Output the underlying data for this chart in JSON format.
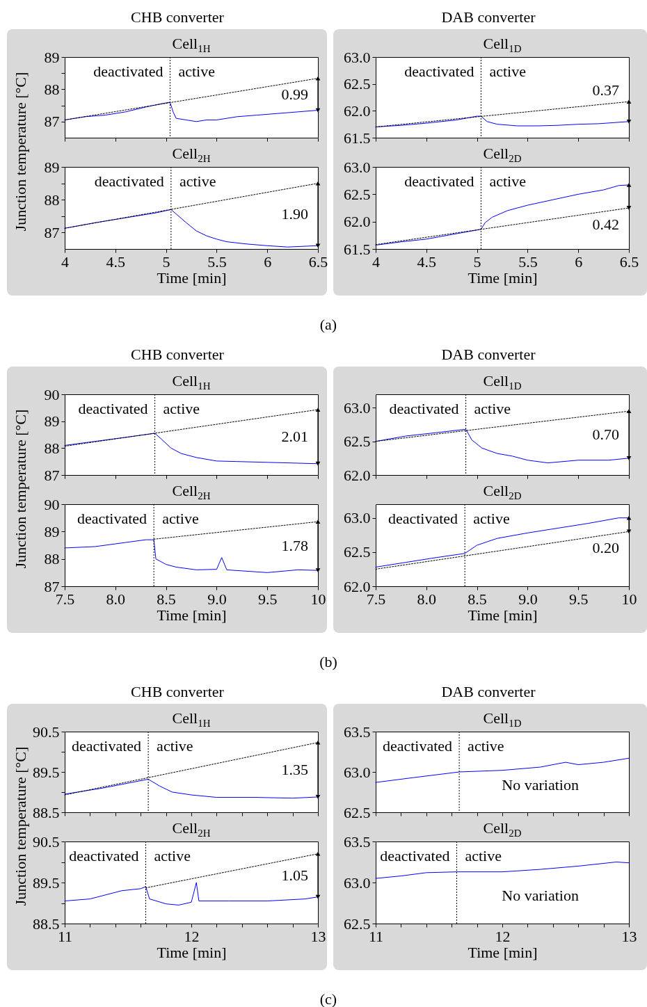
{
  "chart_data": [
    {
      "type": "line",
      "title": "CHB converter",
      "subtitle": "Cell$_{1H}$",
      "ylabel": "Junction temperature [°C]",
      "xlim": [
        4,
        6.5
      ],
      "xticks": [
        4,
        4.5,
        5,
        5.5,
        6,
        6.5
      ],
      "ylim": [
        86.5,
        89
      ],
      "yticks": [
        87,
        {
          "value": 87.5,
          "label": null
        },
        88,
        {
          "value": 88.5,
          "label": null
        },
        89
      ],
      "tick_labels": "y",
      "series": [
        {
          "color": "#0000ff",
          "x": [
            4,
            4.2,
            4.4,
            4.6,
            4.8,
            4.95,
            5.04,
            5.07,
            5.1,
            5.2,
            5.3,
            5.4,
            5.5,
            5.7,
            5.9,
            6.1,
            6.3,
            6.5
          ],
          "values": [
            87.05,
            87.15,
            87.2,
            87.3,
            87.45,
            87.55,
            87.6,
            87.3,
            87.1,
            87.05,
            87.0,
            87.05,
            87.05,
            87.15,
            87.2,
            87.25,
            87.3,
            87.35
          ]
        },
        {
          "type": "line",
          "color": "#000000",
          "line_style": "dotted",
          "x": [
            4,
            6.5
          ],
          "values": [
            87.05,
            88.34
          ]
        }
      ],
      "ref_lines": [
        {
          "axis": "x",
          "value": 5.04,
          "color": "#000000",
          "line_style": "dotted"
        }
      ],
      "annotations": [
        "deactivated",
        "active",
        "0.99"
      ]
    },
    {
      "type": "line",
      "title": "Cell$_{2H}$",
      "xlabel": "Time [min]",
      "xlim": [
        4,
        6.5
      ],
      "xticks": [
        4,
        4.5,
        5,
        5.5,
        6,
        6.5
      ],
      "ylim": [
        86.5,
        89
      ],
      "yticks": [
        87,
        {
          "value": 87.5,
          "label": null
        },
        88,
        {
          "value": 88.5,
          "label": null
        },
        89
      ],
      "series": [
        {
          "color": "#0000ff",
          "x": [
            4,
            4.3,
            4.6,
            4.9,
            5.05,
            5.2,
            5.3,
            5.4,
            5.5,
            5.6,
            5.8,
            6,
            6.2,
            6.5
          ],
          "values": [
            87.13,
            87.3,
            87.45,
            87.6,
            87.7,
            87.3,
            87.05,
            86.9,
            86.8,
            86.72,
            86.65,
            86.6,
            86.56,
            86.6
          ]
        },
        {
          "type": "line",
          "color": "#000000",
          "line_style": "dotted",
          "x": [
            4,
            6.5
          ],
          "values": [
            87.13,
            88.5
          ]
        }
      ],
      "ref_lines": [
        {
          "axis": "x",
          "value": 5.05,
          "color": "#000000",
          "line_style": "dotted"
        }
      ],
      "annotations": [
        "deactivated",
        "active",
        "1.90",
        "(a)"
      ]
    },
    {
      "type": "line",
      "title": "DAB converter",
      "subtitle": "Cell$_{1D}$",
      "xlim": [
        4,
        6.5
      ],
      "xticks": [
        4,
        4.5,
        5,
        5.5,
        6,
        6.5
      ],
      "ylim": [
        61.5,
        63
      ],
      "yticks": [
        61.5,
        {
          "value": 62,
          "label": "62.0"
        },
        62.5,
        {
          "value": 63,
          "label": "63.0"
        }
      ],
      "tick_labels": "y",
      "series": [
        {
          "color": "#0000ff",
          "x": [
            4,
            4.25,
            4.5,
            4.8,
            5.0,
            5.04,
            5.1,
            5.2,
            5.4,
            5.6,
            5.8,
            6.0,
            6.2,
            6.5
          ],
          "values": [
            61.7,
            61.73,
            61.77,
            61.83,
            61.9,
            61.9,
            61.8,
            61.75,
            61.72,
            61.72,
            61.73,
            61.75,
            61.76,
            61.8
          ]
        },
        {
          "type": "line",
          "color": "#000000",
          "line_style": "dotted",
          "x": [
            4,
            6.5
          ],
          "values": [
            61.7,
            62.17
          ]
        }
      ],
      "ref_lines": [
        {
          "axis": "x",
          "value": 5.04,
          "color": "#000000",
          "line_style": "dotted"
        }
      ],
      "annotations": [
        "deactivated",
        "active",
        "0.37"
      ]
    },
    {
      "type": "line",
      "title": "Cell$_{2D}$",
      "xlabel": "Time [min]",
      "xlim": [
        4,
        6.5
      ],
      "xticks": [
        4,
        4.5,
        5,
        5.5,
        6,
        6.5
      ],
      "ylim": [
        61.5,
        63
      ],
      "yticks": [
        61.5,
        {
          "value": 62,
          "label": "62.0"
        },
        62.5,
        {
          "value": 63,
          "label": "63.0"
        }
      ],
      "series": [
        {
          "color": "#0000ff",
          "x": [
            4,
            4.25,
            4.5,
            4.8,
            5.04,
            5.08,
            5.15,
            5.3,
            5.5,
            5.75,
            6.0,
            6.25,
            6.4,
            6.5
          ],
          "values": [
            61.57,
            61.63,
            61.68,
            61.78,
            61.86,
            61.98,
            62.08,
            62.2,
            62.3,
            62.4,
            62.5,
            62.58,
            62.66,
            62.67
          ]
        },
        {
          "type": "line",
          "color": "#000000",
          "line_style": "dotted",
          "x": [
            4,
            6.5
          ],
          "values": [
            61.58,
            62.25
          ]
        }
      ],
      "ref_lines": [
        {
          "axis": "x",
          "value": 5.04,
          "color": "#000000",
          "line_style": "dotted"
        }
      ],
      "annotations": [
        "deactivated",
        "active",
        "0.42"
      ]
    },
    {
      "type": "line",
      "title": "CHB converter",
      "subtitle": "Cell$_{1H}$",
      "ylabel": "Junction temperature [°C]",
      "xlim": [
        7.5,
        10
      ],
      "xticks": [
        7.5,
        8,
        8.5,
        9,
        9.5,
        10
      ],
      "ylim": [
        87,
        90
      ],
      "yticks": [
        87,
        88,
        89,
        90
      ],
      "tick_labels": "y",
      "series": [
        {
          "color": "#0000ff",
          "x": [
            7.5,
            7.8,
            8.1,
            8.39,
            8.45,
            8.55,
            8.65,
            8.8,
            9.0,
            9.2,
            9.5,
            9.8,
            10
          ],
          "values": [
            88.1,
            88.25,
            88.4,
            88.55,
            88.35,
            88.0,
            87.8,
            87.65,
            87.52,
            87.5,
            87.47,
            87.44,
            87.42
          ]
        },
        {
          "type": "line",
          "color": "#000000",
          "line_style": "dotted",
          "x": [
            7.5,
            10
          ],
          "values": [
            88.07,
            89.43
          ]
        }
      ],
      "ref_lines": [
        {
          "axis": "x",
          "value": 8.39,
          "color": "#000000",
          "line_style": "dotted"
        }
      ],
      "annotations": [
        "deactivated",
        "active",
        "2.01"
      ]
    },
    {
      "type": "line",
      "title": "Cell$_{2H}$",
      "xlabel": "Time [min]",
      "xlim": [
        7.5,
        10
      ],
      "xticks": [
        7.5,
        {
          "value": 8,
          "label": "8.0"
        },
        8.5,
        {
          "value": 9,
          "label": "9.0"
        },
        9.5,
        10
      ],
      "ylim": [
        87,
        90
      ],
      "yticks": [
        87,
        88,
        89,
        90
      ],
      "series": [
        {
          "color": "#0000ff",
          "x": [
            7.5,
            7.8,
            8.1,
            8.3,
            8.38,
            8.4,
            8.5,
            8.6,
            8.8,
            9.0,
            9.05,
            9.1,
            9.3,
            9.5,
            9.8,
            10
          ],
          "values": [
            88.4,
            88.45,
            88.6,
            88.7,
            88.7,
            88.0,
            87.8,
            87.7,
            87.6,
            87.62,
            88.05,
            87.6,
            87.55,
            87.5,
            87.6,
            87.58
          ]
        },
        {
          "type": "line",
          "color": "#000000",
          "line_style": "dotted",
          "x": [
            8.38,
            10
          ],
          "values": [
            88.72,
            89.36
          ]
        }
      ],
      "ref_lines": [
        {
          "axis": "x",
          "value": 8.38,
          "color": "#000000",
          "line_style": "dotted"
        }
      ],
      "annotations": [
        "deactivated",
        "active",
        "1.78",
        "(b)"
      ]
    },
    {
      "type": "line",
      "title": "DAB converter",
      "subtitle": "Cell$_{1D}$",
      "xlim": [
        7.5,
        10
      ],
      "xticks": [
        7.5,
        8,
        8.5,
        9,
        9.5,
        10
      ],
      "ylim": [
        62,
        63.2
      ],
      "yticks": [
        {
          "value": 62,
          "label": "62.0"
        },
        62.5,
        {
          "value": 63,
          "label": "63.0"
        }
      ],
      "tick_labels": "y",
      "series": [
        {
          "color": "#0000ff",
          "x": [
            7.5,
            7.8,
            8.1,
            8.39,
            8.45,
            8.55,
            8.7,
            8.85,
            9.0,
            9.2,
            9.5,
            9.8,
            10
          ],
          "values": [
            62.5,
            62.58,
            62.63,
            62.68,
            62.52,
            62.4,
            62.32,
            62.28,
            62.22,
            62.18,
            62.22,
            62.22,
            62.25
          ]
        },
        {
          "type": "line",
          "color": "#000000",
          "line_style": "dotted",
          "x": [
            7.5,
            10
          ],
          "values": [
            62.5,
            62.95
          ]
        }
      ],
      "ref_lines": [
        {
          "axis": "x",
          "value": 8.39,
          "color": "#000000",
          "line_style": "dotted"
        }
      ],
      "annotations": [
        "deactivated",
        "active",
        "0.70"
      ]
    },
    {
      "type": "line",
      "title": "Cell$_{2D}$",
      "xlabel": "Time [min]",
      "xlim": [
        7.5,
        10
      ],
      "xticks": [
        7.5,
        {
          "value": 8,
          "label": "8.0"
        },
        8.5,
        {
          "value": 9,
          "label": "9.0"
        },
        9.5,
        10
      ],
      "ylim": [
        62,
        63.2
      ],
      "yticks": [
        {
          "value": 62,
          "label": "62.0"
        },
        62.5,
        {
          "value": 63,
          "label": "63.0"
        }
      ],
      "series": [
        {
          "color": "#0000ff",
          "x": [
            7.5,
            7.8,
            8.1,
            8.38,
            8.5,
            8.7,
            9.0,
            9.3,
            9.6,
            9.9,
            10
          ],
          "values": [
            62.28,
            62.35,
            62.42,
            62.48,
            62.6,
            62.7,
            62.78,
            62.85,
            62.92,
            63.0,
            63.0
          ]
        },
        {
          "type": "line",
          "color": "#000000",
          "line_style": "dotted",
          "x": [
            7.5,
            10
          ],
          "values": [
            62.25,
            62.8
          ]
        }
      ],
      "ref_lines": [
        {
          "axis": "x",
          "value": 8.38,
          "color": "#000000",
          "line_style": "dotted"
        }
      ],
      "annotations": [
        "deactivated",
        "active",
        "0.20"
      ]
    },
    {
      "type": "line",
      "title": "CHB converter",
      "subtitle": "Cell$_{1H}$",
      "ylabel": "Junction temperature [°C]",
      "xlim": [
        11,
        13
      ],
      "xticks": [
        11,
        {
          "value": 11.2,
          "label": null
        },
        {
          "value": 11.4,
          "label": null
        },
        {
          "value": 11.6,
          "label": null
        },
        {
          "value": 11.8,
          "label": null
        },
        12,
        {
          "value": 12.2,
          "label": null
        },
        {
          "value": 12.4,
          "label": null
        },
        {
          "value": 12.6,
          "label": null
        },
        {
          "value": 12.8,
          "label": null
        },
        13
      ],
      "ylim": [
        88.5,
        90.5
      ],
      "yticks": [
        88.5,
        {
          "value": 89,
          "label": null
        },
        89.5,
        {
          "value": 90,
          "label": null
        },
        90.5
      ],
      "tick_labels": "y",
      "series": [
        {
          "color": "#0000ff",
          "x": [
            11,
            11.3,
            11.66,
            11.75,
            11.85,
            12,
            12.2,
            12.5,
            12.8,
            13
          ],
          "values": [
            88.95,
            89.1,
            89.32,
            89.15,
            89.0,
            88.93,
            88.87,
            88.87,
            88.85,
            88.88
          ]
        },
        {
          "type": "line",
          "color": "#000000",
          "line_style": "dotted",
          "x": [
            11,
            13
          ],
          "values": [
            88.93,
            90.23
          ]
        }
      ],
      "ref_lines": [
        {
          "axis": "x",
          "value": 11.66,
          "color": "#000000",
          "line_style": "dotted"
        }
      ],
      "annotations": [
        "deactivated",
        "active",
        "1.35"
      ]
    },
    {
      "type": "line",
      "title": "Cell$_{2H}$",
      "xlabel": "Time [min]",
      "xlim": [
        11,
        13
      ],
      "xticks": [
        11,
        {
          "value": 11.2,
          "label": null
        },
        {
          "value": 11.4,
          "label": null
        },
        {
          "value": 11.6,
          "label": null
        },
        {
          "value": 11.8,
          "label": null
        },
        12,
        {
          "value": 12.2,
          "label": null
        },
        {
          "value": 12.4,
          "label": null
        },
        {
          "value": 12.6,
          "label": null
        },
        {
          "value": 12.8,
          "label": null
        },
        13
      ],
      "ylim": [
        88.5,
        90.5
      ],
      "yticks": [
        88.5,
        {
          "value": 89,
          "label": null
        },
        89.5,
        {
          "value": 90,
          "label": null
        },
        90.5
      ],
      "series": [
        {
          "color": "#0000ff",
          "x": [
            11,
            11.2,
            11.45,
            11.6,
            11.64,
            11.67,
            11.8,
            11.9,
            12.0,
            12.04,
            12.06,
            12.3,
            12.6,
            12.9,
            13
          ],
          "values": [
            89.05,
            89.1,
            89.3,
            89.35,
            89.4,
            89.1,
            88.98,
            88.95,
            89.02,
            89.5,
            89.05,
            89.05,
            89.05,
            89.1,
            89.15
          ]
        },
        {
          "type": "line",
          "color": "#000000",
          "line_style": "dotted",
          "x": [
            11.64,
            13
          ],
          "values": [
            89.37,
            90.2
          ]
        }
      ],
      "ref_lines": [
        {
          "axis": "x",
          "value": 11.64,
          "color": "#000000",
          "line_style": "dotted"
        }
      ],
      "annotations": [
        "deactivated",
        "active",
        "1.05",
        "(c)"
      ]
    },
    {
      "type": "line",
      "title": "DAB converter",
      "subtitle": "Cell$_{1D}$",
      "xlim": [
        11,
        13
      ],
      "xticks": [
        11,
        {
          "value": 11.2,
          "label": null
        },
        {
          "value": 11.4,
          "label": null
        },
        {
          "value": 11.6,
          "label": null
        },
        {
          "value": 11.8,
          "label": null
        },
        12,
        {
          "value": 12.2,
          "label": null
        },
        {
          "value": 12.4,
          "label": null
        },
        {
          "value": 12.6,
          "label": null
        },
        {
          "value": 12.8,
          "label": null
        },
        13
      ],
      "ylim": [
        62.5,
        63.5
      ],
      "yticks": [
        62.5,
        {
          "value": 63,
          "label": "63.0"
        },
        63.5
      ],
      "tick_labels": "y",
      "series": [
        {
          "color": "#0000ff",
          "x": [
            11,
            11.3,
            11.66,
            12,
            12.3,
            12.5,
            12.6,
            12.8,
            13
          ],
          "values": [
            62.87,
            62.93,
            63.0,
            63.02,
            63.06,
            63.12,
            63.09,
            63.12,
            63.17
          ]
        }
      ],
      "ref_lines": [
        {
          "axis": "x",
          "value": 11.66,
          "color": "#000000",
          "line_style": "dotted"
        }
      ],
      "annotations": [
        "deactivated",
        "active",
        "No variation"
      ]
    },
    {
      "type": "line",
      "title": "Cell$_{2D}$",
      "xlabel": "Time [min]",
      "xlim": [
        11,
        13
      ],
      "xticks": [
        11,
        {
          "value": 11.2,
          "label": null
        },
        {
          "value": 11.4,
          "label": null
        },
        {
          "value": 11.6,
          "label": null
        },
        {
          "value": 11.8,
          "label": null
        },
        12,
        {
          "value": 12.2,
          "label": null
        },
        {
          "value": 12.4,
          "label": null
        },
        {
          "value": 12.6,
          "label": null
        },
        {
          "value": 12.8,
          "label": null
        },
        13
      ],
      "ylim": [
        62.5,
        63.5
      ],
      "yticks": [
        62.5,
        {
          "value": 63,
          "label": "63.0"
        },
        63.5
      ],
      "series": [
        {
          "color": "#0000ff",
          "x": [
            11,
            11.2,
            11.4,
            11.64,
            12,
            12.3,
            12.6,
            12.9,
            13
          ],
          "values": [
            63.05,
            63.08,
            63.12,
            63.13,
            63.13,
            63.16,
            63.2,
            63.25,
            63.24
          ]
        }
      ],
      "ref_lines": [
        {
          "axis": "x",
          "value": 11.64,
          "color": "#000000",
          "line_style": "dotted"
        }
      ],
      "annotations": [
        "deactivated",
        "active",
        "No variation"
      ]
    }
  ]
}
